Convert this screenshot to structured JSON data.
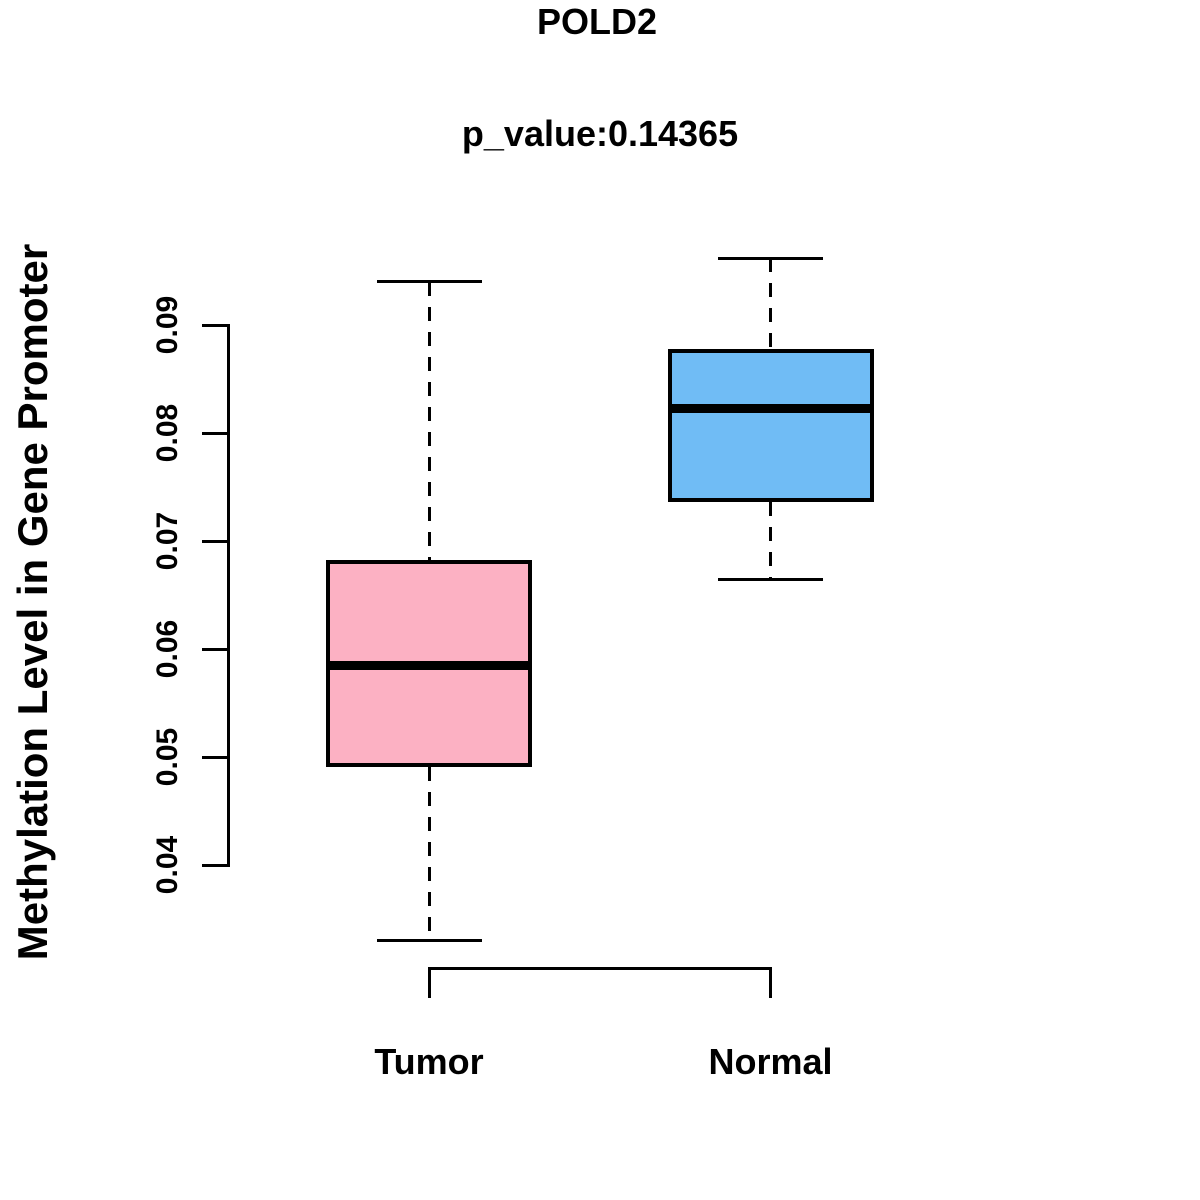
{
  "title": "POLD2",
  "subtitle": "p_value:0.14365",
  "y_axis_label": "Methylation Level in Gene Promoter",
  "colors": {
    "tumor_fill": "#FCB1C3",
    "normal_fill": "#70BCF5",
    "line": "#000000",
    "background": "#FFFFFF"
  },
  "chart_data": {
    "type": "boxplot",
    "title": "POLD2",
    "subtitle": "p_value:0.14365",
    "xlabel": "",
    "ylabel": "Methylation Level in Gene Promoter",
    "categories": [
      "Tumor",
      "Normal"
    ],
    "y_ticks": [
      0.04,
      0.05,
      0.06,
      0.07,
      0.08,
      0.09
    ],
    "y_tick_labels": [
      "0.04",
      "0.05",
      "0.06",
      "0.07",
      "0.08",
      "0.09"
    ],
    "ylim": [
      0.033,
      0.0965
    ],
    "grid": false,
    "legend": false,
    "groups": [
      {
        "name": "Tumor",
        "fill": "#FCB1C3",
        "stats": {
          "lower_whisker": 0.033,
          "q1": 0.0491,
          "median": 0.0585,
          "q3": 0.0682,
          "upper_whisker": 0.094
        }
      },
      {
        "name": "Normal",
        "fill": "#70BCF5",
        "stats": {
          "lower_whisker": 0.0664,
          "q1": 0.0736,
          "median": 0.0823,
          "q3": 0.0878,
          "upper_whisker": 0.0962
        }
      }
    ],
    "comparison_bracket": true
  }
}
